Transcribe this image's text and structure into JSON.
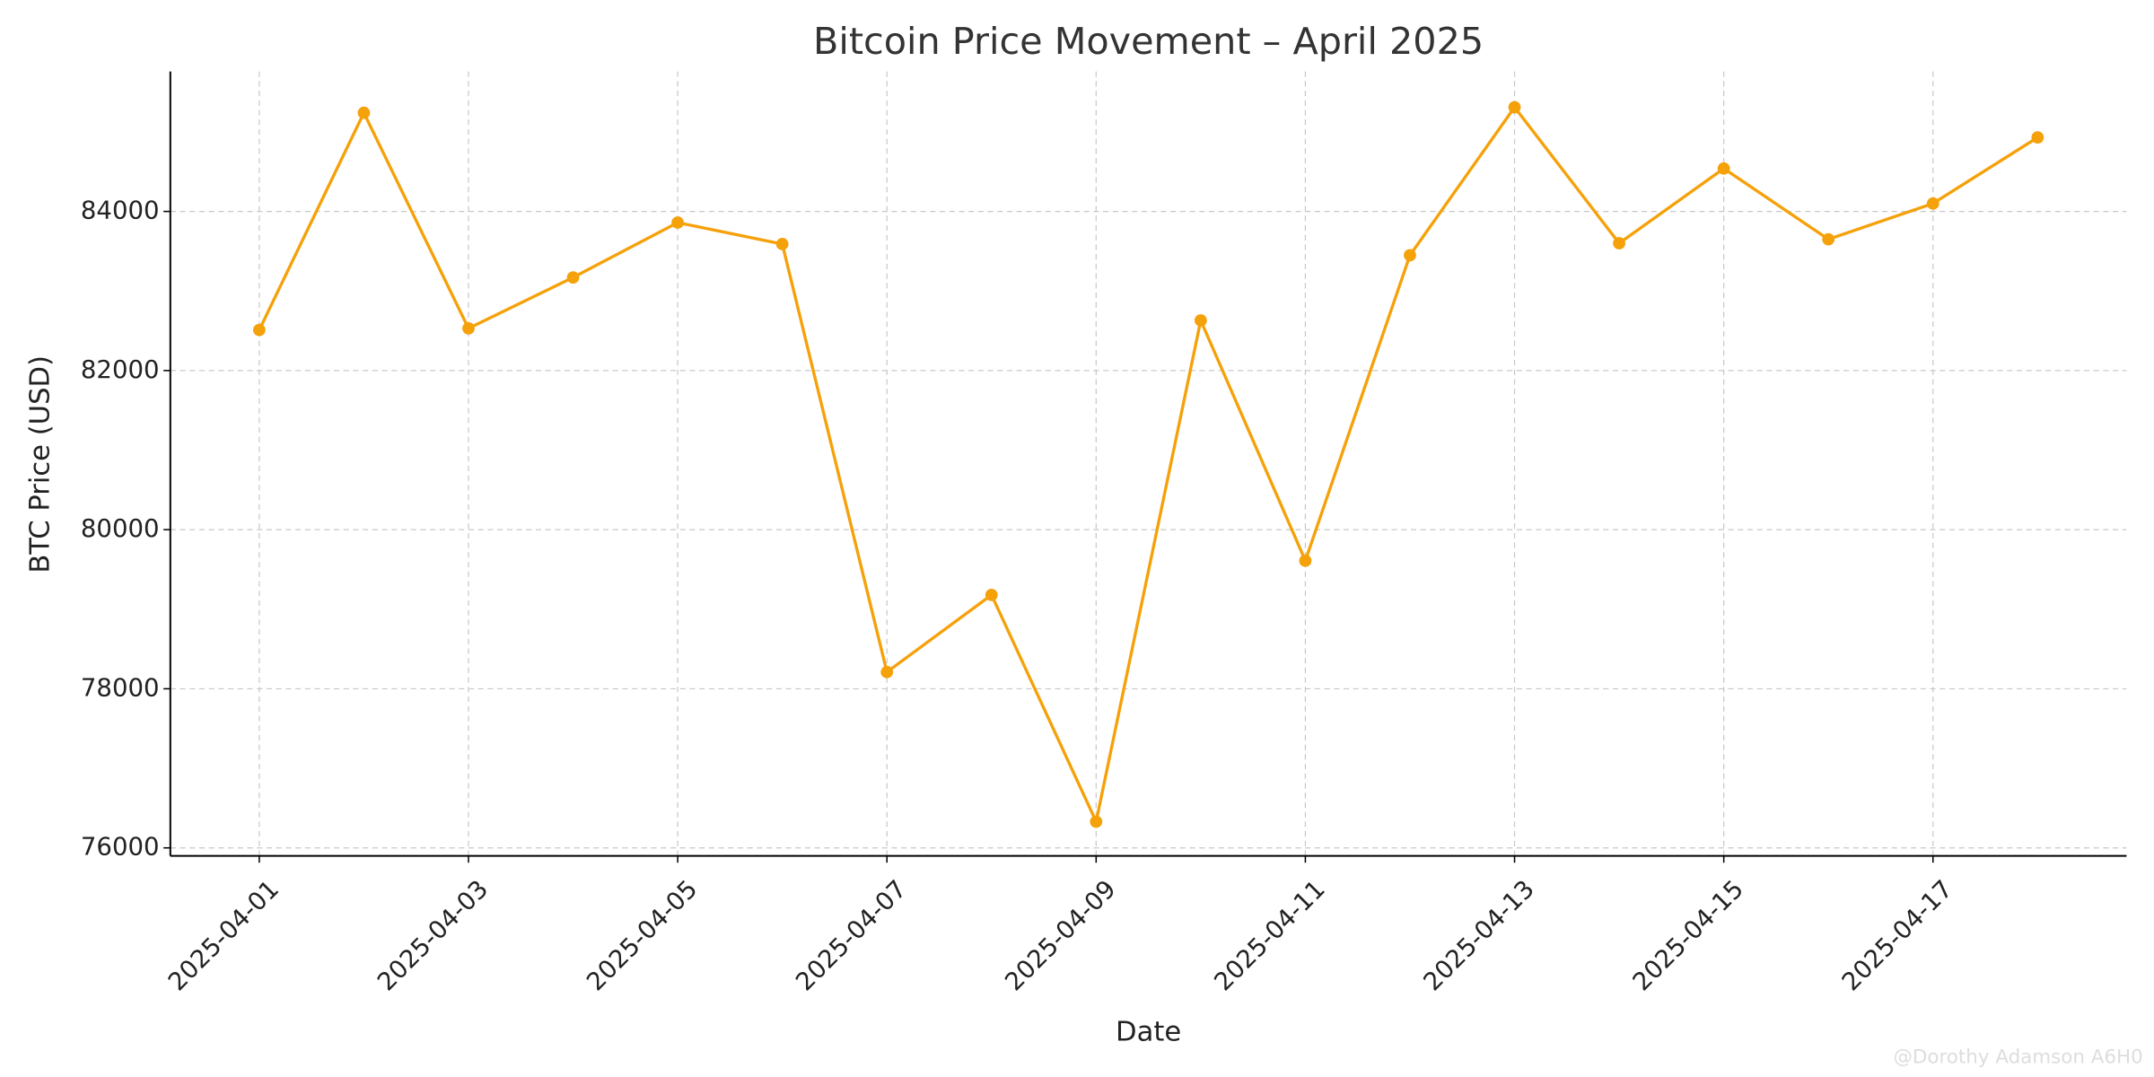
{
  "chart_data": {
    "type": "line",
    "title": "Bitcoin Price Movement – April 2025",
    "xlabel": "Date",
    "ylabel": "BTC Price (USD)",
    "x": [
      "2025-04-01",
      "2025-04-02",
      "2025-04-03",
      "2025-04-04",
      "2025-04-05",
      "2025-04-06",
      "2025-04-07",
      "2025-04-08",
      "2025-04-09",
      "2025-04-10",
      "2025-04-11",
      "2025-04-12",
      "2025-04-13",
      "2025-04-14",
      "2025-04-15",
      "2025-04-16",
      "2025-04-17",
      "2025-04-18"
    ],
    "series": [
      {
        "name": "BTC Price",
        "color": "#f5a10a",
        "values": [
          82510,
          85240,
          82530,
          83170,
          83860,
          83590,
          78210,
          79180,
          76330,
          82630,
          79610,
          83450,
          85310,
          83600,
          84540,
          83650,
          84100,
          84930
        ]
      }
    ],
    "xticks": [
      "2025-04-01",
      "2025-04-03",
      "2025-04-05",
      "2025-04-07",
      "2025-04-09",
      "2025-04-11",
      "2025-04-13",
      "2025-04-15",
      "2025-04-17"
    ],
    "ylim": [
      75900,
      85760
    ],
    "yticks": [
      76000,
      78000,
      80000,
      82000,
      84000
    ],
    "grid": true,
    "watermark": "@Dorothy Adamson A6H0"
  }
}
